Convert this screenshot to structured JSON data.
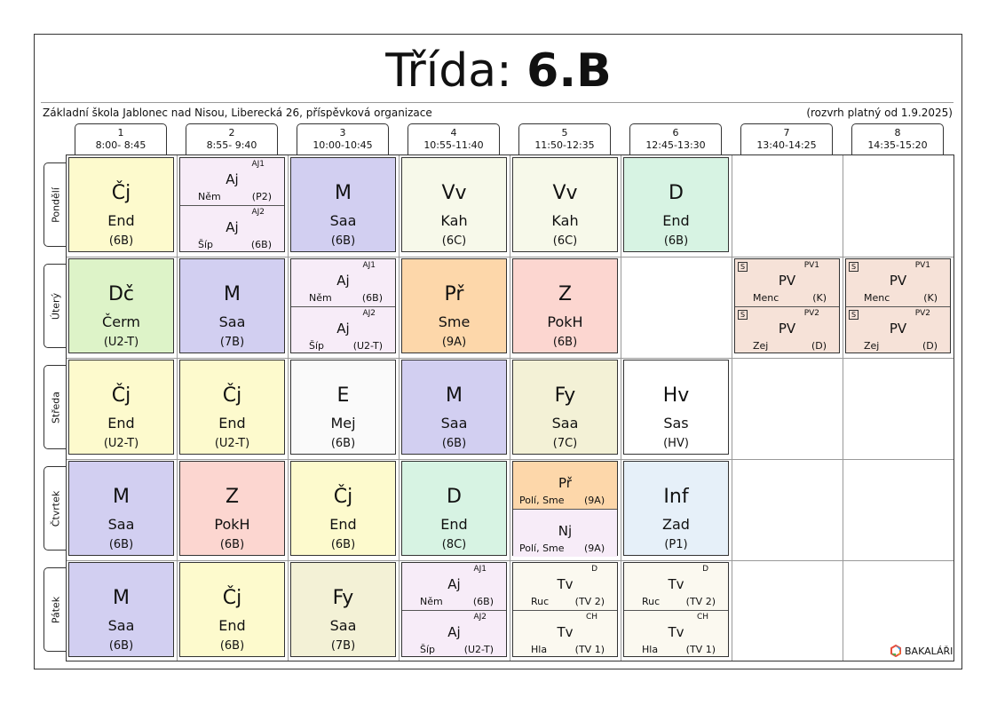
{
  "header": {
    "title_prefix": "Třída:",
    "title_class": "6.B",
    "school": "Základní škola Jablonec nad Nisou, Liberecká 26, příspěvková organizace",
    "valid_from": "(rozvrh platný od 1.9.2025)"
  },
  "periods": [
    {
      "num": "1",
      "time": "8:00- 8:45"
    },
    {
      "num": "2",
      "time": "8:55- 9:40"
    },
    {
      "num": "3",
      "time": "10:00-10:45"
    },
    {
      "num": "4",
      "time": "10:55-11:40"
    },
    {
      "num": "5",
      "time": "11:50-12:35"
    },
    {
      "num": "6",
      "time": "12:45-13:30"
    },
    {
      "num": "7",
      "time": "13:40-14:25"
    },
    {
      "num": "8",
      "time": "14:35-15:20"
    }
  ],
  "days": [
    "Pondělí",
    "Úterý",
    "Středa",
    "Čtvrtek",
    "Pátek"
  ],
  "colors": {
    "cj": "#fdfacd",
    "aj": "#f7ecf8",
    "m": "#d2cff1",
    "vv": "#f7f9ea",
    "d": "#d7f3e3",
    "dc": "#ddf3c8",
    "pr": "#fdd7aa",
    "z": "#fcd6d0",
    "pv": "#f6e2d8",
    "e": "#fafafa",
    "fy": "#f3f1d6",
    "hv": "#ffffff",
    "inf": "#e6f0f9",
    "tv": "#fbf9f0"
  },
  "schedule": {
    "mon": {
      "p1": {
        "subj": "Čj",
        "teach": "End",
        "room": "(6B)"
      },
      "p2": {
        "a": {
          "grp": "AJ1",
          "subj": "Aj",
          "teach": "Něm",
          "room": "(P2)"
        },
        "b": {
          "grp": "AJ2",
          "subj": "Aj",
          "teach": "Šíp",
          "room": "(6B)"
        }
      },
      "p3": {
        "subj": "M",
        "teach": "Saa",
        "room": "(6B)"
      },
      "p4": {
        "subj": "Vv",
        "teach": "Kah",
        "room": "(6C)"
      },
      "p5": {
        "subj": "Vv",
        "teach": "Kah",
        "room": "(6C)"
      },
      "p6": {
        "subj": "D",
        "teach": "End",
        "room": "(6B)"
      }
    },
    "tue": {
      "p1": {
        "subj": "Dč",
        "teach": "Čerm",
        "room": "(U2-T)"
      },
      "p2": {
        "subj": "M",
        "teach": "Saa",
        "room": "(7B)"
      },
      "p3": {
        "a": {
          "grp": "AJ1",
          "subj": "Aj",
          "teach": "Něm",
          "room": "(6B)"
        },
        "b": {
          "grp": "AJ2",
          "subj": "Aj",
          "teach": "Šíp",
          "room": "(U2-T)"
        }
      },
      "p4": {
        "subj": "Př",
        "teach": "Sme",
        "room": "(9A)"
      },
      "p5": {
        "subj": "Z",
        "teach": "PokH",
        "room": "(6B)"
      },
      "p7": {
        "a": {
          "s": "S",
          "grp": "PV1",
          "subj": "PV",
          "teach": "Menc",
          "room": "(K)"
        },
        "b": {
          "s": "S",
          "grp": "PV2",
          "subj": "PV",
          "teach": "Zej",
          "room": "(D)"
        }
      },
      "p8": {
        "a": {
          "s": "S",
          "grp": "PV1",
          "subj": "PV",
          "teach": "Menc",
          "room": "(K)"
        },
        "b": {
          "s": "S",
          "grp": "PV2",
          "subj": "PV",
          "teach": "Zej",
          "room": "(D)"
        }
      }
    },
    "wed": {
      "p1": {
        "subj": "Čj",
        "teach": "End",
        "room": "(U2-T)"
      },
      "p2": {
        "subj": "Čj",
        "teach": "End",
        "room": "(U2-T)"
      },
      "p3": {
        "subj": "E",
        "teach": "Mej",
        "room": "(6B)"
      },
      "p4": {
        "subj": "M",
        "teach": "Saa",
        "room": "(6B)"
      },
      "p5": {
        "subj": "Fy",
        "teach": "Saa",
        "room": "(7C)"
      },
      "p6": {
        "subj": "Hv",
        "teach": "Sas",
        "room": "(HV)"
      }
    },
    "thu": {
      "p1": {
        "subj": "M",
        "teach": "Saa",
        "room": "(6B)"
      },
      "p2": {
        "subj": "Z",
        "teach": "PokH",
        "room": "(6B)"
      },
      "p3": {
        "subj": "Čj",
        "teach": "End",
        "room": "(6B)"
      },
      "p4": {
        "subj": "D",
        "teach": "End",
        "room": "(8C)"
      },
      "p5": {
        "a": {
          "subj": "Př",
          "teach": "Polí, Sme",
          "room": "(9A)"
        },
        "b": {
          "subj": "Nj",
          "teach": "Polí, Sme",
          "room": "(9A)"
        }
      },
      "p6": {
        "subj": "Inf",
        "teach": "Zad",
        "room": "(P1)"
      }
    },
    "fri": {
      "p1": {
        "subj": "M",
        "teach": "Saa",
        "room": "(6B)"
      },
      "p2": {
        "subj": "Čj",
        "teach": "End",
        "room": "(6B)"
      },
      "p3": {
        "subj": "Fy",
        "teach": "Saa",
        "room": "(7B)"
      },
      "p4": {
        "a": {
          "grp": "AJ1",
          "subj": "Aj",
          "teach": "Něm",
          "room": "(6B)"
        },
        "b": {
          "grp": "AJ2",
          "subj": "Aj",
          "teach": "Šíp",
          "room": "(U2-T)"
        }
      },
      "p5": {
        "a": {
          "grp": "D",
          "subj": "Tv",
          "teach": "Ruc",
          "room": "(TV 2)"
        },
        "b": {
          "grp": "CH",
          "subj": "Tv",
          "teach": "Hla",
          "room": "(TV 1)"
        }
      },
      "p6": {
        "a": {
          "grp": "D",
          "subj": "Tv",
          "teach": "Ruc",
          "room": "(TV 2)"
        },
        "b": {
          "grp": "CH",
          "subj": "Tv",
          "teach": "Hla",
          "room": "(TV 1)"
        }
      }
    }
  },
  "footer": {
    "brand": "BAKALÁŘI"
  }
}
